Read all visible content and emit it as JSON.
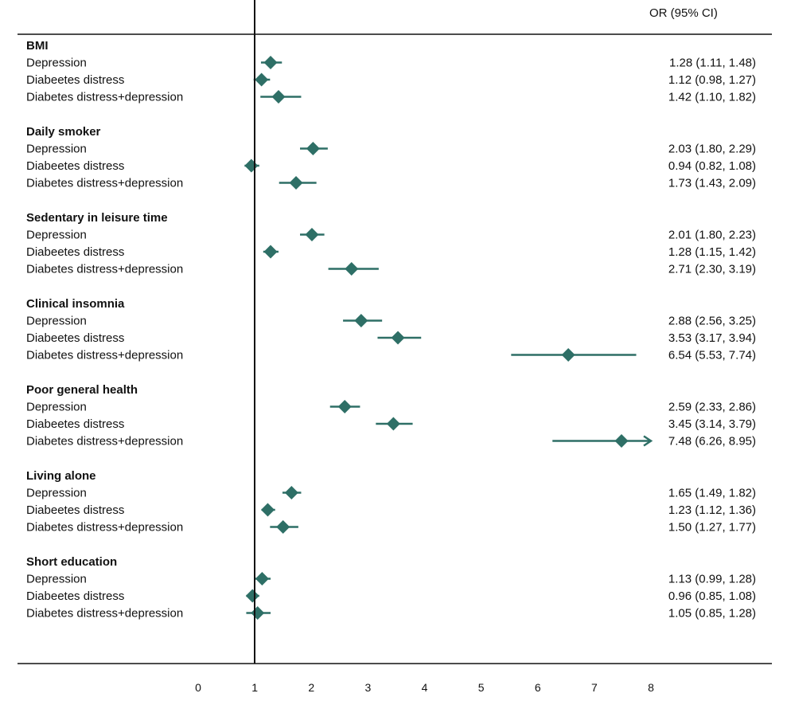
{
  "chart_data": {
    "type": "forest",
    "title": "",
    "xlabel": "",
    "ylabel": "",
    "column_header": "OR (95% CI)",
    "reference_line": 1,
    "xlim": [
      0,
      8
    ],
    "x_ticks": [
      0,
      1,
      2,
      3,
      4,
      5,
      6,
      7,
      8
    ],
    "marker_color": "#2e6f66",
    "groups": [
      {
        "name": "BMI",
        "rows": [
          {
            "label": "Depression",
            "or": 1.28,
            "lo": 1.11,
            "hi": 1.48,
            "text": "1.28 (1.11, 1.48)"
          },
          {
            "label": "Diabeetes distress",
            "or": 1.12,
            "lo": 0.98,
            "hi": 1.27,
            "text": "1.12 (0.98, 1.27)"
          },
          {
            "label": "Diabetes distress+depression",
            "or": 1.42,
            "lo": 1.1,
            "hi": 1.82,
            "text": "1.42 (1.10, 1.82)"
          }
        ]
      },
      {
        "name": "Daily smoker",
        "rows": [
          {
            "label": "Depression",
            "or": 2.03,
            "lo": 1.8,
            "hi": 2.29,
            "text": "2.03 (1.80, 2.29)"
          },
          {
            "label": "Diabeetes distress",
            "or": 0.94,
            "lo": 0.82,
            "hi": 1.08,
            "text": "0.94 (0.82, 1.08)"
          },
          {
            "label": "Diabetes distress+depression",
            "or": 1.73,
            "lo": 1.43,
            "hi": 2.09,
            "text": "1.73 (1.43, 2.09)"
          }
        ]
      },
      {
        "name": "Sedentary in leisure time",
        "rows": [
          {
            "label": "Depression",
            "or": 2.01,
            "lo": 1.8,
            "hi": 2.23,
            "text": "2.01 (1.80, 2.23)"
          },
          {
            "label": "Diabeetes distress",
            "or": 1.28,
            "lo": 1.15,
            "hi": 1.42,
            "text": "1.28 (1.15, 1.42)"
          },
          {
            "label": "Diabetes distress+depression",
            "or": 2.71,
            "lo": 2.3,
            "hi": 3.19,
            "text": "2.71 (2.30, 3.19)"
          }
        ]
      },
      {
        "name": "Clinical insomnia",
        "rows": [
          {
            "label": "Depression",
            "or": 2.88,
            "lo": 2.56,
            "hi": 3.25,
            "text": "2.88 (2.56, 3.25)"
          },
          {
            "label": "Diabeetes distress",
            "or": 3.53,
            "lo": 3.17,
            "hi": 3.94,
            "text": "3.53 (3.17, 3.94)"
          },
          {
            "label": "Diabetes distress+depression",
            "or": 6.54,
            "lo": 5.53,
            "hi": 7.74,
            "text": "6.54 (5.53, 7.74)"
          }
        ]
      },
      {
        "name": "Poor general health",
        "rows": [
          {
            "label": "Depression",
            "or": 2.59,
            "lo": 2.33,
            "hi": 2.86,
            "text": "2.59 (2.33, 2.86)"
          },
          {
            "label": "Diabeetes distress",
            "or": 3.45,
            "lo": 3.14,
            "hi": 3.79,
            "text": "3.45 (3.14, 3.79)"
          },
          {
            "label": "Diabetes distress+depression",
            "or": 7.48,
            "lo": 6.26,
            "hi": 8.95,
            "text": "7.48 (6.26, 8.95)",
            "truncated": true
          }
        ]
      },
      {
        "name": "Living alone",
        "rows": [
          {
            "label": "Depression",
            "or": 1.65,
            "lo": 1.49,
            "hi": 1.82,
            "text": "1.65 (1.49, 1.82)"
          },
          {
            "label": "Diabeetes distress",
            "or": 1.23,
            "lo": 1.12,
            "hi": 1.36,
            "text": "1.23 (1.12, 1.36)"
          },
          {
            "label": "Diabetes distress+depression",
            "or": 1.5,
            "lo": 1.27,
            "hi": 1.77,
            "text": "1.50 (1.27, 1.77)"
          }
        ]
      },
      {
        "name": "Short education",
        "rows": [
          {
            "label": "Depression",
            "or": 1.13,
            "lo": 0.99,
            "hi": 1.28,
            "text": "1.13 (0.99, 1.28)"
          },
          {
            "label": "Diabeetes distress",
            "or": 0.96,
            "lo": 0.85,
            "hi": 1.08,
            "text": "0.96 (0.85, 1.08)"
          },
          {
            "label": "Diabetes distress+depression",
            "or": 1.05,
            "lo": 0.85,
            "hi": 1.28,
            "text": "1.05 (0.85, 1.28)"
          }
        ]
      }
    ]
  }
}
